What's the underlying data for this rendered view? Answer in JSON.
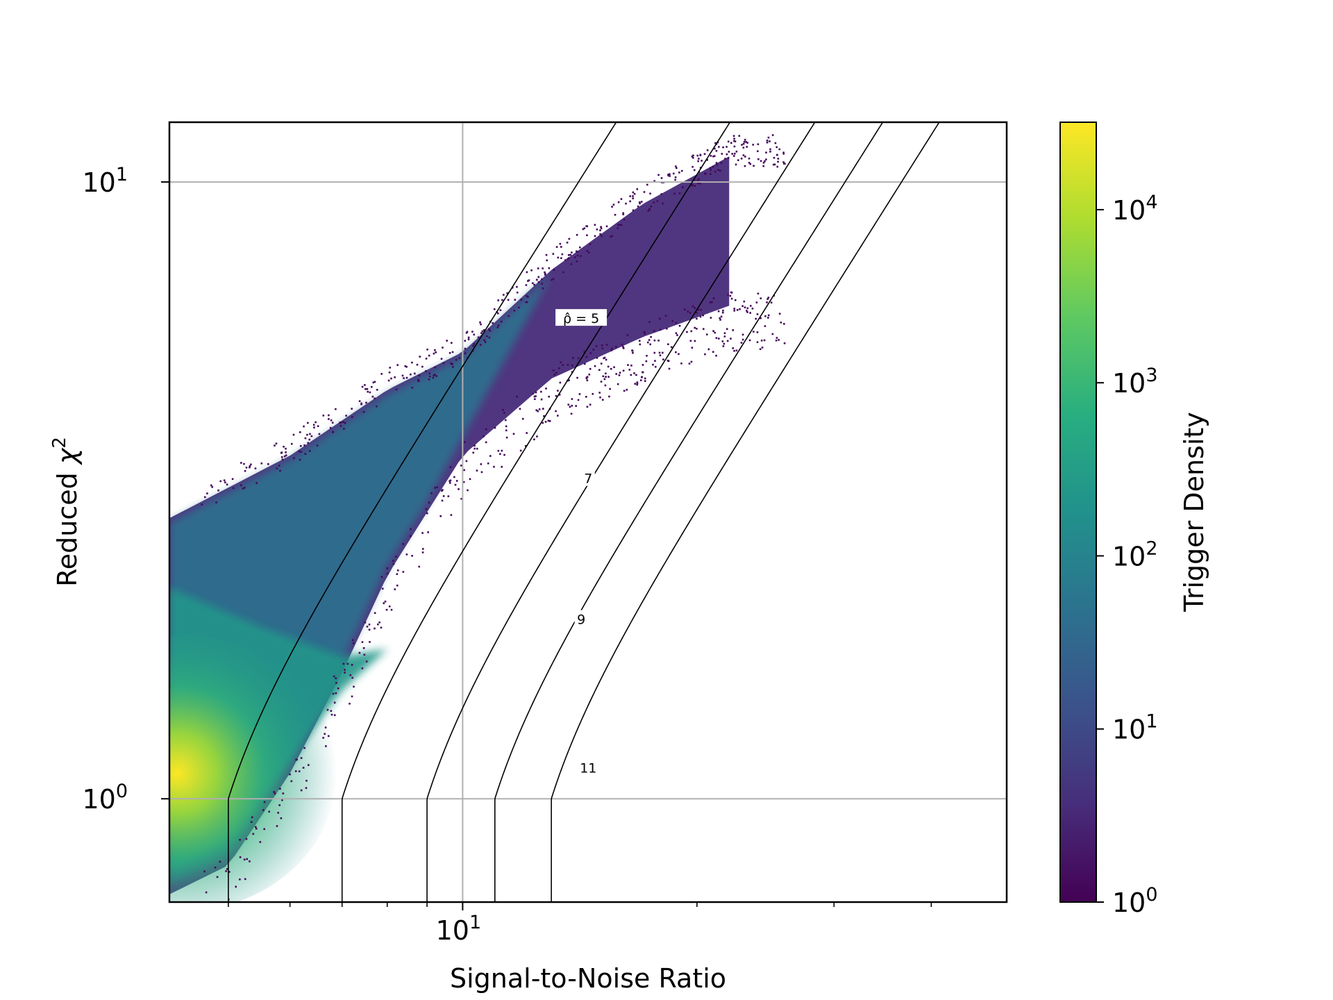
{
  "chart_data": {
    "type": "heatmap",
    "title": "",
    "xlabel": "Signal-to-Noise Ratio",
    "ylabel_text": "Reduced ",
    "ylabel_symbol": "χ",
    "ylabel_sup": "2",
    "x_scale": "log",
    "y_scale": "log",
    "xlim": [
      4.2,
      50
    ],
    "ylim": [
      0.68,
      12.5
    ],
    "x_ticks": [
      {
        "value": 10,
        "base": "10",
        "exp": "1"
      }
    ],
    "x_minor_ticks": [
      5,
      6,
      7,
      8,
      9,
      20,
      30,
      40
    ],
    "y_ticks": [
      {
        "value": 1,
        "base": "10",
        "exp": "0"
      },
      {
        "value": 10,
        "base": "10",
        "exp": "1"
      }
    ],
    "grid": true,
    "colorbar": {
      "label": "Trigger Density",
      "scale": "log",
      "range": [
        1,
        32000
      ],
      "ticks": [
        {
          "value": 1,
          "base": "10",
          "exp": "0"
        },
        {
          "value": 10,
          "base": "10",
          "exp": "1"
        },
        {
          "value": 100,
          "base": "10",
          "exp": "2"
        },
        {
          "value": 1000,
          "base": "10",
          "exp": "3"
        },
        {
          "value": 10000,
          "base": "10",
          "exp": "4"
        }
      ],
      "colormap": [
        "#440154",
        "#472d7b",
        "#3b528b",
        "#2c728e",
        "#21918c",
        "#28ae80",
        "#5ec962",
        "#addc30",
        "#fde725"
      ]
    },
    "density_summary": {
      "dense_core": {
        "snr": 4.3,
        "chi2": 1.1,
        "density": 30000
      },
      "upper_edge": [
        [
          4.2,
          2.85
        ],
        [
          6,
          3.6
        ],
        [
          8,
          4.6
        ],
        [
          10,
          5.3
        ],
        [
          13,
          7.2
        ],
        [
          17,
          9.2
        ],
        [
          22,
          11
        ]
      ],
      "lower_edge": [
        [
          4.2,
          0.7
        ],
        [
          5,
          0.78
        ],
        [
          6,
          1.1
        ],
        [
          7,
          1.6
        ],
        [
          8,
          2.3
        ],
        [
          10,
          3.6
        ],
        [
          13,
          4.8
        ],
        [
          17,
          5.6
        ],
        [
          22,
          6.3
        ]
      ]
    },
    "contours": [
      {
        "label": "ρ̂ = 5",
        "level": 5,
        "label_at": [
          14.2,
          6.0
        ]
      },
      {
        "label": "7",
        "level": 7,
        "label_at": [
          14.5,
          3.3
        ]
      },
      {
        "label": "9",
        "level": 9,
        "label_at": [
          14.2,
          1.95
        ]
      },
      {
        "label": "11",
        "level": 11,
        "label_at": [
          14.5,
          1.12
        ]
      },
      {
        "level": 13
      }
    ]
  }
}
